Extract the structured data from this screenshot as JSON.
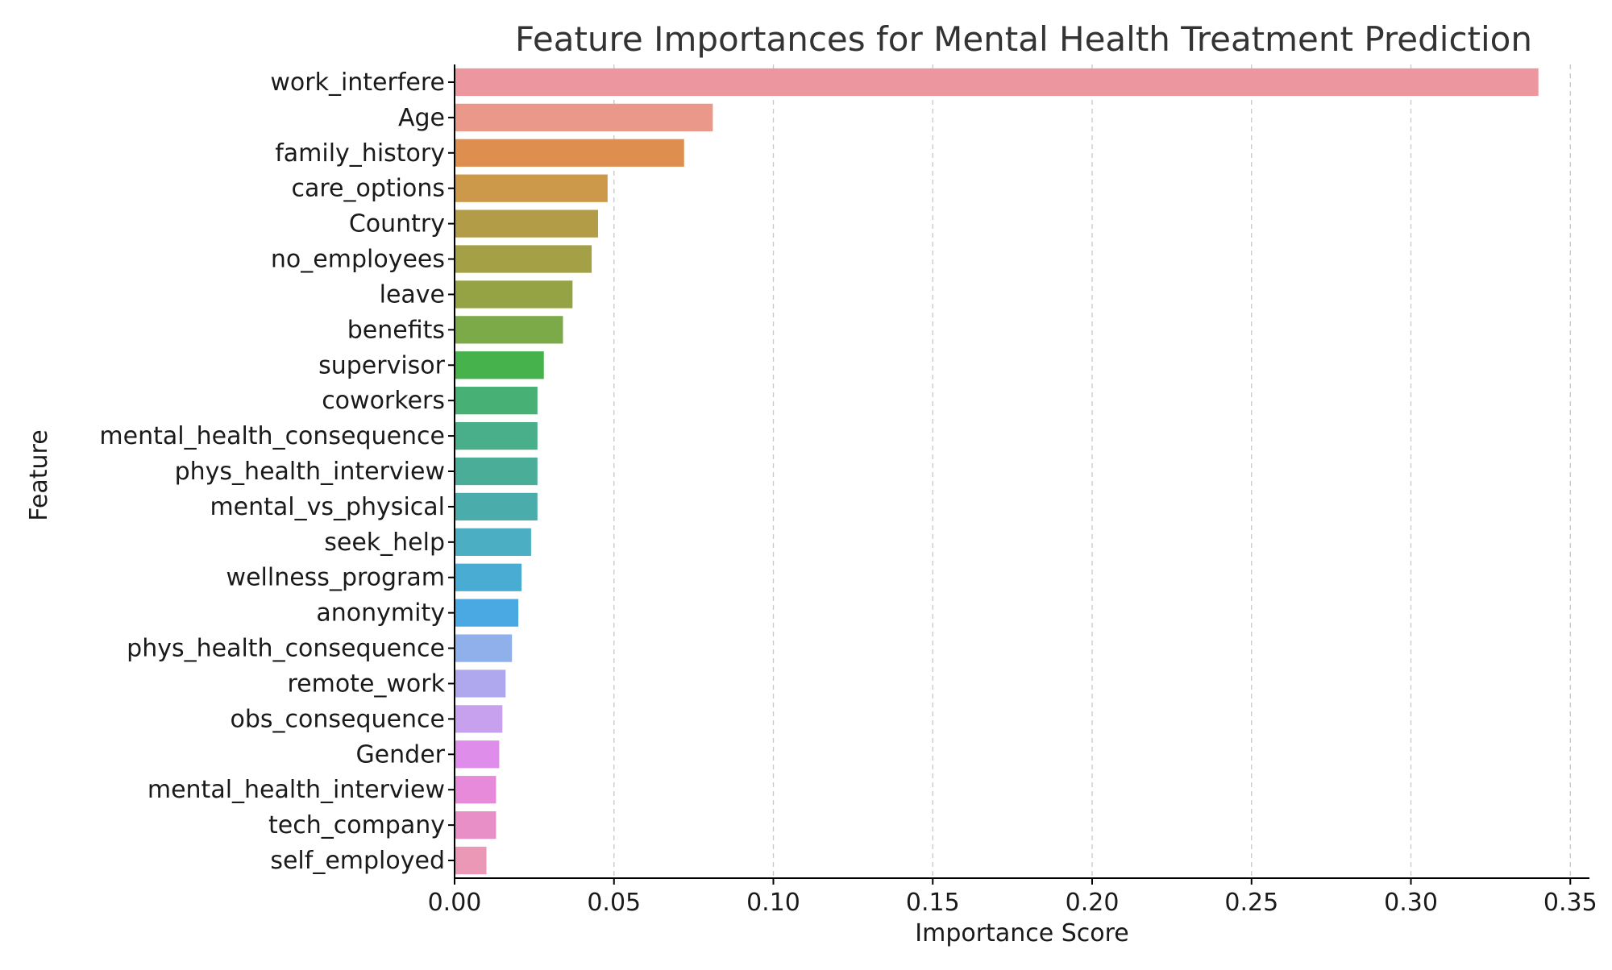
{
  "chart_data": {
    "type": "bar",
    "orientation": "horizontal",
    "title": "Feature Importances for Mental Health Treatment Prediction",
    "xlabel": "Importance Score",
    "ylabel": "Feature",
    "xlim": [
      0,
      0.356
    ],
    "xticks": [
      "0.00",
      "0.05",
      "0.10",
      "0.15",
      "0.20",
      "0.25",
      "0.30",
      "0.35"
    ],
    "grid": "x-dashed",
    "categories": [
      "work_interfere",
      "Age",
      "family_history",
      "care_options",
      "Country",
      "no_employees",
      "leave",
      "benefits",
      "supervisor",
      "coworkers",
      "mental_health_consequence",
      "phys_health_interview",
      "mental_vs_physical",
      "seek_help",
      "wellness_program",
      "anonymity",
      "phys_health_consequence",
      "remote_work",
      "obs_consequence",
      "Gender",
      "mental_health_interview",
      "tech_company",
      "self_employed"
    ],
    "values": [
      0.34,
      0.081,
      0.072,
      0.048,
      0.045,
      0.043,
      0.037,
      0.034,
      0.028,
      0.026,
      0.026,
      0.026,
      0.026,
      0.024,
      0.021,
      0.02,
      0.018,
      0.016,
      0.015,
      0.014,
      0.013,
      0.013,
      0.01
    ],
    "colors": [
      "#ec96a0",
      "#e9988a",
      "#de8f4f",
      "#cb9949",
      "#b39c48",
      "#a3a046",
      "#95a344",
      "#7daa48",
      "#46b24b",
      "#47b075",
      "#49ae8a",
      "#4aad98",
      "#4badab",
      "#4baec2",
      "#49acd2",
      "#4aa9e2",
      "#8fb0ea",
      "#b0a8ee",
      "#c7a0ee",
      "#de8eea",
      "#e68ad9",
      "#e98fc8",
      "#eb97b6"
    ]
  }
}
